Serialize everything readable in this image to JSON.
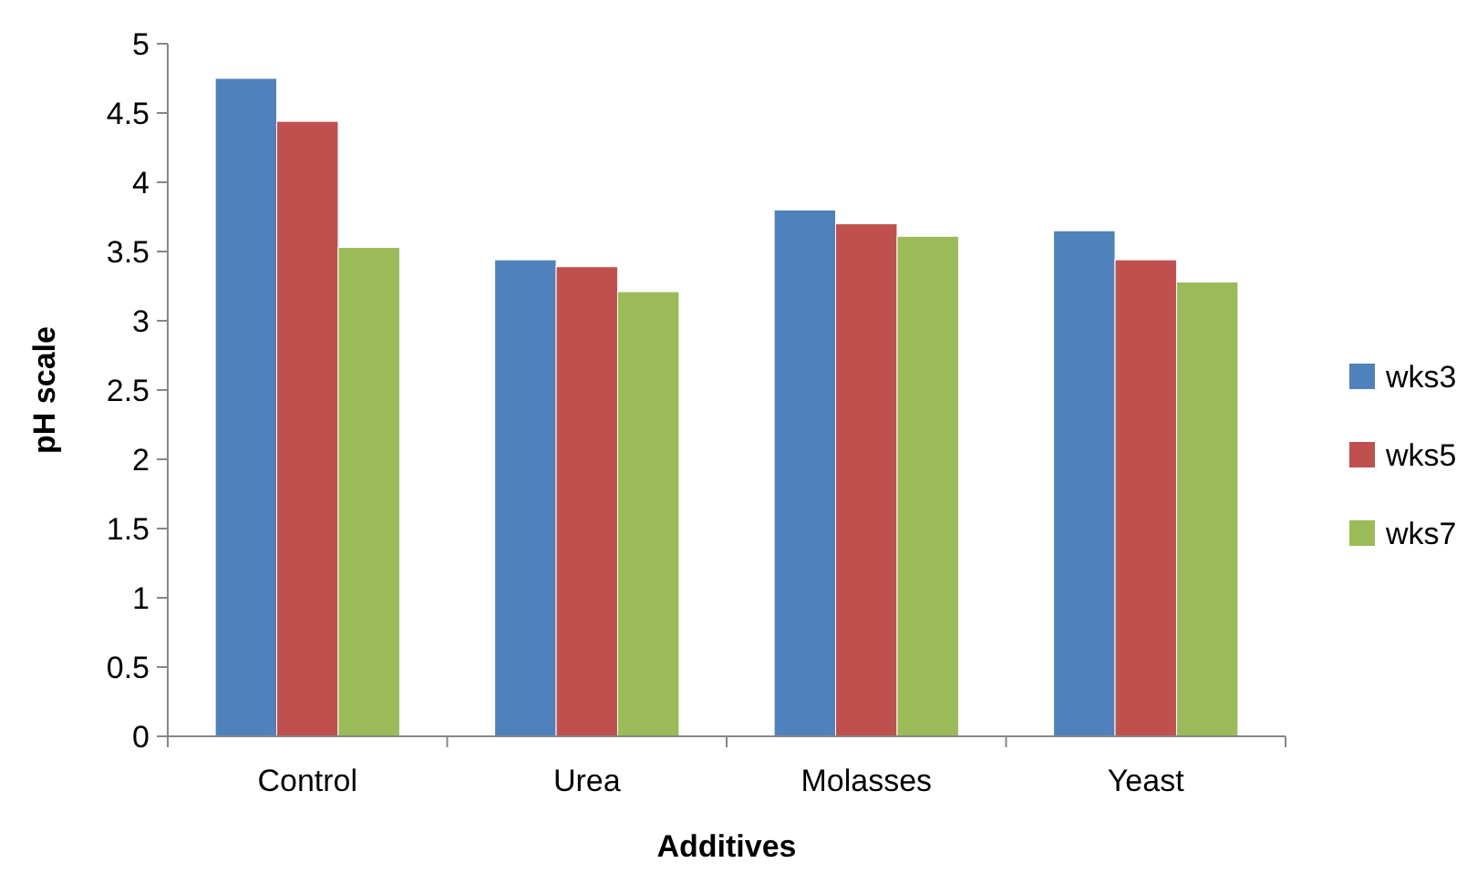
{
  "chart_data": {
    "type": "bar",
    "xlabel": "Additives",
    "ylabel": "pH scale",
    "categories": [
      "Control",
      "Urea",
      "Molasses",
      "Yeast"
    ],
    "series": [
      {
        "name": "wks3",
        "color": "#4f81bd",
        "values": [
          4.75,
          3.44,
          3.8,
          3.65
        ]
      },
      {
        "name": "wks5",
        "color": "#c0504d",
        "values": [
          4.44,
          3.39,
          3.7,
          3.44
        ]
      },
      {
        "name": "wks7",
        "color": "#9bbb59",
        "values": [
          3.53,
          3.21,
          3.61,
          3.28
        ]
      }
    ],
    "ylim": [
      0,
      5
    ],
    "yticks": [
      0,
      0.5,
      1,
      1.5,
      2,
      2.5,
      3,
      3.5,
      4,
      4.5,
      5
    ],
    "grid": false,
    "legend": "right"
  }
}
